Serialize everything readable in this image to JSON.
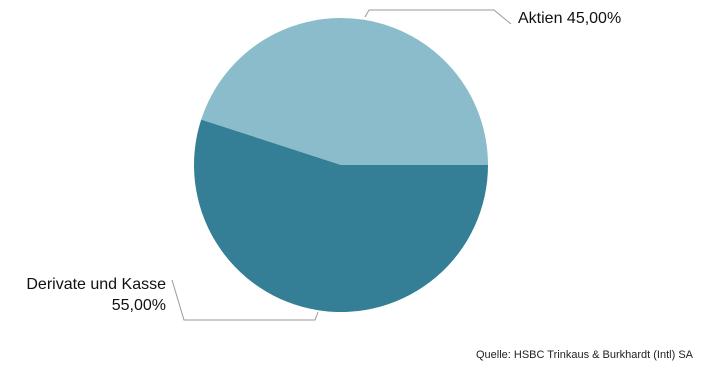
{
  "chart_data": {
    "type": "pie",
    "slices": [
      {
        "label": "Aktien",
        "value": 45.0,
        "display": "Aktien 45,00%",
        "color": "#8BBCCB"
      },
      {
        "label": "Derivate und Kasse",
        "value": 55.0,
        "display_line1": "Derivate und Kasse",
        "display_line2": "55,00%",
        "color": "#357F96"
      }
    ],
    "source": "Quelle: HSBC Trinkaus & Burkhardt (Intl) SA"
  },
  "colors": {
    "leader_line": "#9a9a9a",
    "text": "#111111"
  }
}
